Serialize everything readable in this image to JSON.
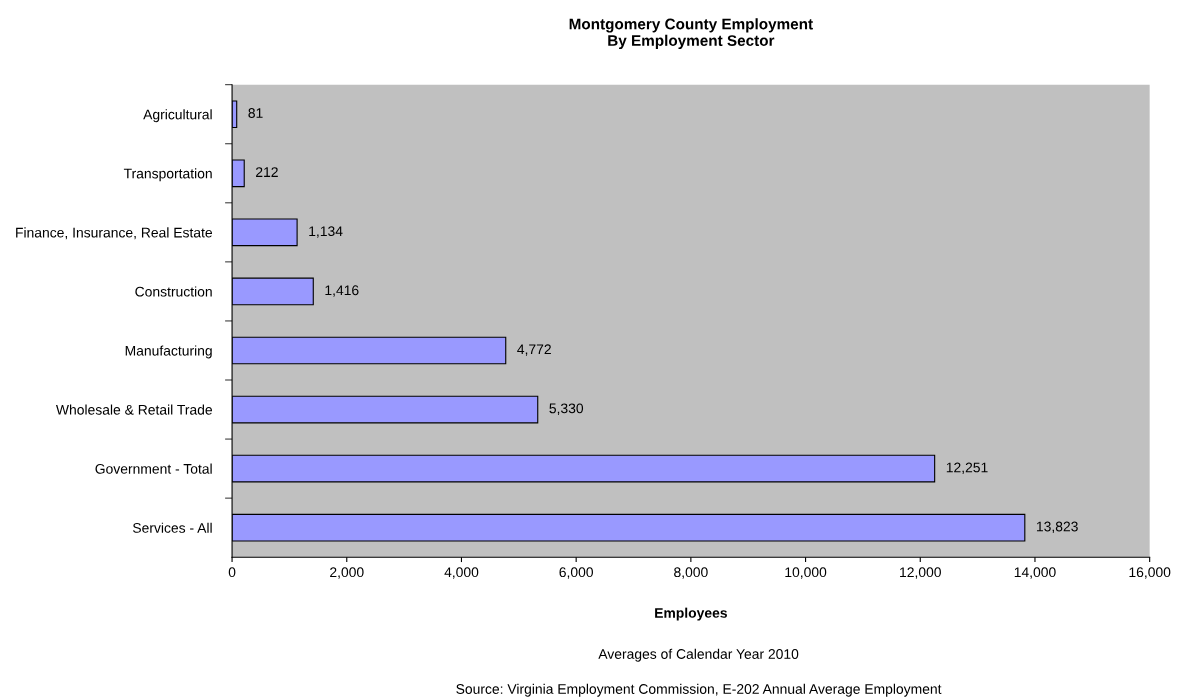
{
  "chart_data": {
    "type": "bar",
    "orientation": "horizontal",
    "title": "Montgomery County Employment\nBy Employment Sector",
    "xlabel": "Employees",
    "categories": [
      "Agricultural",
      "Transportation",
      "Finance, Insurance, Real Estate",
      "Construction",
      "Manufacturing",
      "Wholesale & Retail Trade",
      "Government - Total",
      "Services - All"
    ],
    "values": [
      81,
      212,
      1134,
      1416,
      4772,
      5330,
      12251,
      13823
    ],
    "value_labels": [
      "81",
      "212",
      "1,134",
      "1,416",
      "4,772",
      "5,330",
      "12,251",
      "13,823"
    ],
    "color": "#9999ff",
    "xlim": [
      0,
      16000
    ],
    "xticks": [
      0,
      {
        "value": 2000,
        "label": "2,000"
      },
      {
        "value": 4000,
        "label": "4,000"
      },
      {
        "value": 6000,
        "label": "6,000"
      },
      {
        "value": 8000,
        "label": "8,000"
      },
      {
        "value": 10000,
        "label": "10,000"
      },
      {
        "value": 12000,
        "label": "12,000"
      },
      {
        "value": 14000,
        "label": "14,000"
      },
      {
        "value": 16000,
        "label": "16,000"
      }
    ],
    "grid": false,
    "annotations": [
      "Averages of Calendar Year 2010",
      "Source: Virginia Employment Commission, E-202 Annual Average Employment"
    ]
  }
}
